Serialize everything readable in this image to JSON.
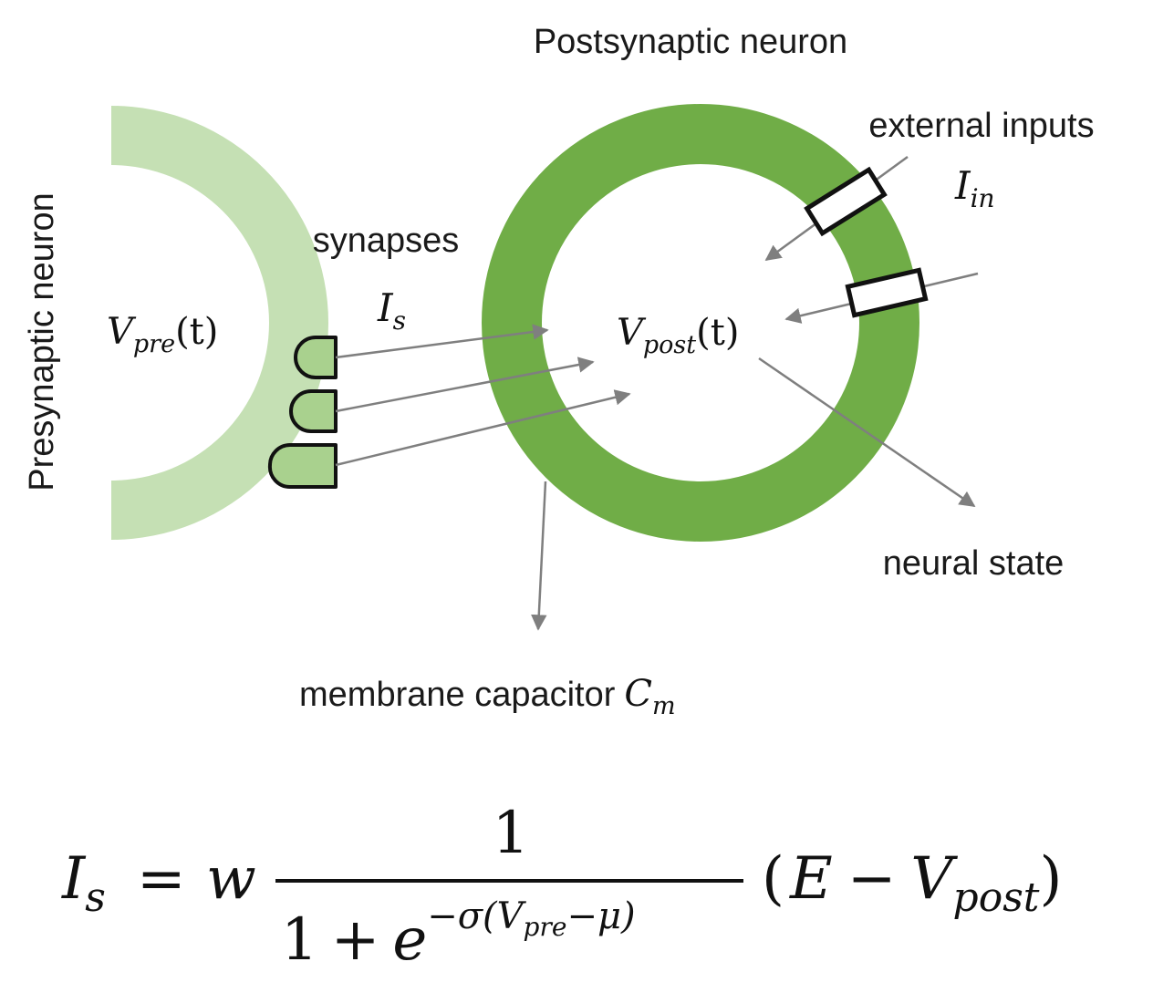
{
  "labels": {
    "postsynaptic": "Postsynaptic neuron",
    "presynaptic": "Presynaptic neuron",
    "synapses": "synapses",
    "external_inputs": "external inputs",
    "neural_state": "neural state",
    "membrane_capacitor": "membrane capacitor"
  },
  "symbols": {
    "v_pre": {
      "base": "V",
      "sub": "pre",
      "arg": "(t)"
    },
    "v_post": {
      "base": "V",
      "sub": "post",
      "arg": "(t)"
    },
    "i_s": {
      "base": "I",
      "sub": "s"
    },
    "i_in": {
      "base": "I",
      "sub": "in"
    },
    "c_m": {
      "base": "C",
      "sub": "m"
    }
  },
  "equation": {
    "lhs_base": "I",
    "lhs_sub": "s",
    "equals": "=",
    "weight": "w",
    "numerator": "1",
    "den_one": "1",
    "den_plus": "+",
    "den_e": "e",
    "exp_neg_sigma": "−σ(",
    "exp_v": "V",
    "exp_v_sub": "pre",
    "exp_minus_mu": "−μ)",
    "paren_open": "(",
    "rhs_e": "E",
    "rhs_minus": "−",
    "rhs_v": "V",
    "rhs_v_sub": "post",
    "paren_close": ")"
  },
  "colors": {
    "presynaptic_fill": "#c5e0b4",
    "postsynaptic_ring": "#70ad47",
    "synapse_fill": "#a9d18e",
    "arrow": "#7f7f7f",
    "outline": "#111111"
  }
}
